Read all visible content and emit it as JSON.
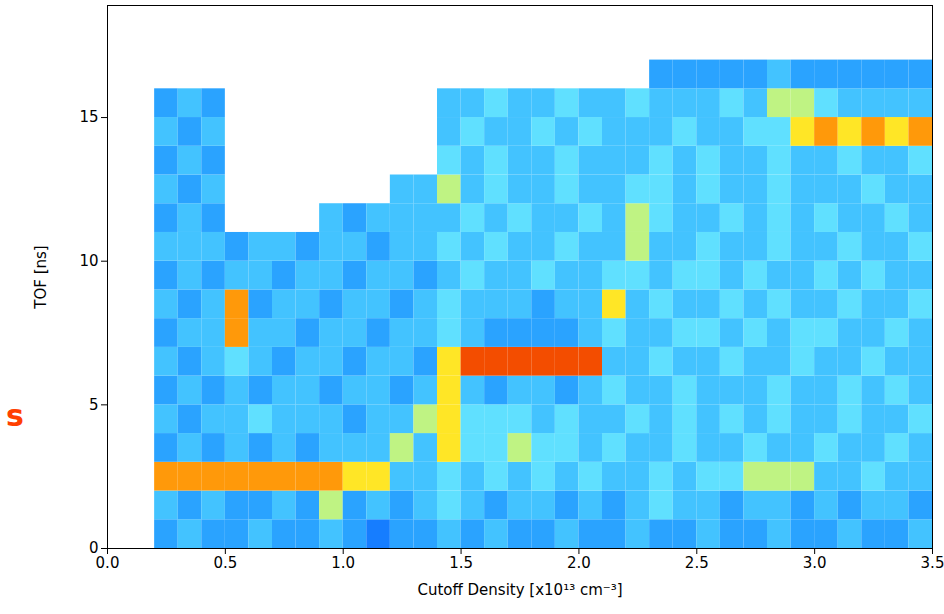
{
  "chart_data": {
    "type": "heatmap",
    "xlabel": "Cutoff Density [x10¹³ cm⁻³]",
    "ylabel": "TOF [ns]",
    "xlim": [
      0,
      3.5
    ],
    "ylim": [
      0,
      18.9
    ],
    "xticks": [
      {
        "value": 0,
        "label": "0.0"
      },
      {
        "value": 0.5,
        "label": "0.5"
      },
      {
        "value": 1,
        "label": "1.0"
      },
      {
        "value": 1.5,
        "label": "1.5"
      },
      {
        "value": 2,
        "label": "2.0"
      },
      {
        "value": 2.5,
        "label": "2.5"
      },
      {
        "value": 3,
        "label": "3.0"
      },
      {
        "value": 3.5,
        "label": "3.5"
      }
    ],
    "yticks": [
      0,
      5,
      10,
      15
    ],
    "x_bins": [
      0.2,
      0.3,
      0.4,
      0.5,
      0.6,
      0.7,
      0.8,
      0.9,
      1.0,
      1.1,
      1.2,
      1.3,
      1.4,
      1.5,
      1.6,
      1.7,
      1.8,
      1.9,
      2.0,
      2.1,
      2.2,
      2.3,
      2.4,
      2.5,
      2.6,
      2.7,
      2.8,
      2.9,
      3.0,
      3.1,
      3.2,
      3.3,
      3.4,
      3.5
    ],
    "y_bins": [
      0,
      1,
      2,
      3,
      4,
      5,
      6,
      7,
      8,
      9,
      10,
      11,
      12,
      13,
      14,
      15,
      16,
      17
    ],
    "cells": [
      [
        3,
        4,
        3,
        3,
        4,
        3,
        3,
        4,
        3,
        2,
        3,
        3,
        4,
        3,
        4,
        3,
        3,
        4,
        3,
        3,
        4,
        3,
        3,
        4,
        3,
        3,
        4,
        3,
        3,
        4,
        3,
        3,
        4
      ],
      [
        4,
        3,
        4,
        3,
        3,
        4,
        3,
        6,
        3,
        4,
        3,
        4,
        5,
        4,
        3,
        4,
        4,
        3,
        4,
        3,
        4,
        5,
        4,
        4,
        3,
        4,
        4,
        3,
        4,
        3,
        4,
        4,
        3
      ],
      [
        8,
        8,
        8,
        8,
        8,
        8,
        8,
        8,
        7,
        7,
        4,
        4,
        5,
        4,
        5,
        4,
        5,
        4,
        5,
        4,
        4,
        5,
        4,
        5,
        5,
        6,
        6,
        6,
        4,
        4,
        5,
        4,
        4
      ],
      [
        3,
        4,
        3,
        4,
        3,
        4,
        3,
        4,
        4,
        4,
        6,
        4,
        7,
        5,
        5,
        6,
        5,
        5,
        4,
        5,
        4,
        4,
        5,
        4,
        4,
        5,
        4,
        4,
        5,
        4,
        4,
        5,
        4
      ],
      [
        4,
        3,
        4,
        4,
        5,
        4,
        4,
        4,
        3,
        4,
        4,
        6,
        7,
        5,
        5,
        5,
        4,
        5,
        4,
        4,
        5,
        4,
        5,
        4,
        5,
        4,
        5,
        4,
        4,
        5,
        4,
        4,
        5
      ],
      [
        3,
        4,
        3,
        4,
        3,
        4,
        4,
        3,
        4,
        4,
        3,
        4,
        7,
        4,
        3,
        4,
        4,
        3,
        4,
        5,
        4,
        4,
        5,
        4,
        4,
        4,
        5,
        4,
        4,
        5,
        4,
        5,
        4
      ],
      [
        4,
        3,
        4,
        5,
        4,
        3,
        4,
        4,
        3,
        4,
        4,
        3,
        7,
        9,
        9,
        9,
        9,
        9,
        9,
        4,
        4,
        5,
        4,
        4,
        5,
        4,
        4,
        5,
        4,
        4,
        5,
        4,
        4
      ],
      [
        3,
        4,
        4,
        8,
        4,
        4,
        3,
        4,
        4,
        3,
        4,
        4,
        5,
        4,
        3,
        3,
        3,
        3,
        4,
        5,
        4,
        4,
        5,
        5,
        4,
        5,
        4,
        5,
        5,
        4,
        4,
        5,
        4
      ],
      [
        4,
        3,
        4,
        8,
        3,
        4,
        4,
        3,
        4,
        4,
        3,
        4,
        5,
        4,
        4,
        4,
        3,
        4,
        4,
        7,
        4,
        5,
        4,
        4,
        5,
        4,
        5,
        4,
        4,
        5,
        4,
        4,
        5
      ],
      [
        3,
        4,
        3,
        4,
        4,
        3,
        4,
        4,
        3,
        4,
        4,
        3,
        4,
        5,
        4,
        4,
        5,
        4,
        4,
        5,
        5,
        4,
        5,
        5,
        4,
        5,
        4,
        4,
        5,
        4,
        5,
        4,
        4
      ],
      [
        4,
        4,
        4,
        3,
        4,
        4,
        3,
        4,
        4,
        3,
        4,
        4,
        5,
        4,
        5,
        4,
        4,
        5,
        4,
        4,
        6,
        4,
        4,
        5,
        4,
        4,
        5,
        4,
        4,
        5,
        4,
        4,
        5
      ],
      [
        3,
        4,
        3,
        null,
        null,
        null,
        null,
        4,
        3,
        4,
        4,
        4,
        4,
        5,
        4,
        5,
        4,
        4,
        5,
        4,
        6,
        5,
        4,
        4,
        5,
        4,
        5,
        4,
        5,
        4,
        4,
        5,
        4
      ],
      [
        4,
        3,
        4,
        null,
        null,
        null,
        null,
        null,
        null,
        null,
        4,
        4,
        6,
        4,
        5,
        4,
        4,
        5,
        4,
        4,
        5,
        5,
        4,
        5,
        4,
        4,
        5,
        4,
        4,
        4,
        5,
        4,
        4
      ],
      [
        3,
        4,
        3,
        null,
        null,
        null,
        null,
        null,
        null,
        null,
        null,
        null,
        5,
        4,
        5,
        4,
        4,
        5,
        4,
        4,
        4,
        5,
        4,
        5,
        4,
        4,
        5,
        4,
        4,
        5,
        4,
        4,
        5
      ],
      [
        4,
        3,
        4,
        null,
        null,
        null,
        null,
        null,
        null,
        null,
        null,
        null,
        4,
        5,
        4,
        4,
        5,
        4,
        5,
        4,
        4,
        4,
        5,
        4,
        4,
        5,
        5,
        7,
        8,
        7,
        8,
        7,
        8
      ],
      [
        3,
        4,
        3,
        null,
        null,
        null,
        null,
        null,
        null,
        null,
        null,
        null,
        4,
        4,
        5,
        4,
        4,
        5,
        4,
        4,
        5,
        4,
        4,
        4,
        5,
        4,
        6,
        6,
        5,
        4,
        4,
        4,
        4
      ],
      [
        null,
        null,
        null,
        null,
        null,
        null,
        null,
        null,
        null,
        null,
        null,
        null,
        null,
        null,
        null,
        null,
        null,
        null,
        null,
        null,
        null,
        3,
        3,
        3,
        3,
        3,
        4,
        3,
        3,
        3,
        3,
        3,
        3
      ]
    ],
    "color_range": [
      0,
      10
    ],
    "colors": [
      "#0030ff",
      "#1070ff",
      "#30b0ff",
      "#60e0ff",
      "#ffff30",
      "#ff8000",
      "#e00000"
    ],
    "annotations": [
      {
        "text": "s",
        "color": "#ff4000"
      }
    ]
  }
}
